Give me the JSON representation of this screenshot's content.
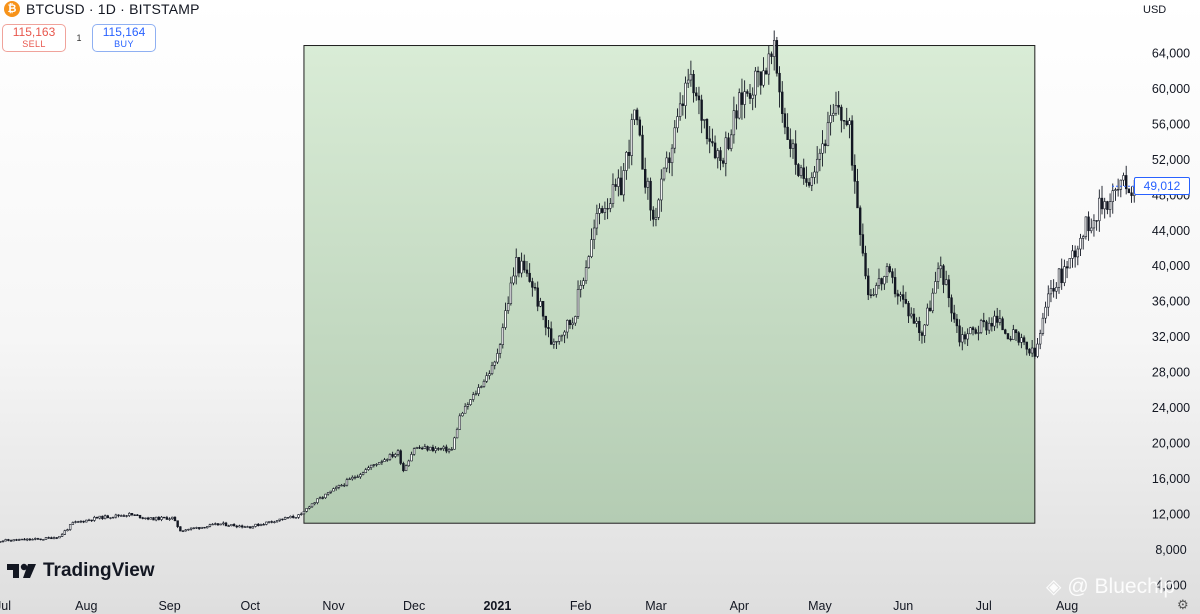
{
  "header": {
    "symbol_icon": "bitcoin-icon",
    "symbol_icon_glyph": "₿",
    "title": "BTCUSD · 1D · BITSTAMP"
  },
  "trade": {
    "sell_price": "115,163",
    "sell_label": "SELL",
    "spread": "1",
    "buy_price": "115,164",
    "buy_label": "BUY"
  },
  "currency": "USD",
  "last_price": "49,012",
  "logo": {
    "text": "TradingView",
    "icon": "tradingview-logo-icon"
  },
  "watermark": {
    "text": "@ Bluechip",
    "icon": "binance-diamond-icon",
    "icon_glyph": "◈"
  },
  "settings_icon": "⚙",
  "colors": {
    "highlight_fill": "#c4dfc2",
    "candle": "#131722",
    "accent": "#2962ff",
    "sell": "#e8574d"
  },
  "chart_data": {
    "type": "candlestick",
    "title": "",
    "xlabel": "",
    "ylabel": "",
    "ylim": [
      3000,
      68000
    ],
    "y_ticks": [
      64000,
      60000,
      56000,
      52000,
      48000,
      44000,
      40000,
      36000,
      32000,
      28000,
      24000,
      20000,
      16000,
      12000,
      8000,
      4000
    ],
    "y_tick_labels": [
      "64,000",
      "60,000",
      "56,000",
      "52,000",
      "48,000",
      "44,000",
      "40,000",
      "36,000",
      "32,000",
      "28,000",
      "24,000",
      "20,000",
      "16,000",
      "12,000",
      "8,000",
      "4,000"
    ],
    "x_tick_labels": [
      "Jul",
      "Aug",
      "Sep",
      "Oct",
      "Nov",
      "Dec",
      "2021",
      "Feb",
      "Mar",
      "Apr",
      "May",
      "Jun",
      "Jul",
      "Aug"
    ],
    "x_tick_dates": [
      "2020-07-01",
      "2020-08-01",
      "2020-09-01",
      "2020-10-01",
      "2020-11-01",
      "2020-12-01",
      "2021-01-01",
      "2021-02-01",
      "2021-03-01",
      "2021-04-01",
      "2021-05-01",
      "2021-06-01",
      "2021-07-01",
      "2021-08-01"
    ],
    "grid": false,
    "last_value": 49012,
    "highlight_range": {
      "start_date": "2020-10-21",
      "end_date": "2021-07-20",
      "low": 11000,
      "high": 64900
    },
    "series": [
      {
        "points": [
          [
            "2020-06-28",
            9000
          ],
          [
            "2020-07-15",
            9200
          ],
          [
            "2020-07-22",
            9500
          ],
          [
            "2020-07-27",
            11000
          ],
          [
            "2020-08-05",
            11600
          ],
          [
            "2020-08-17",
            12000
          ],
          [
            "2020-08-25",
            11500
          ],
          [
            "2020-09-02",
            11600
          ],
          [
            "2020-09-05",
            10200
          ],
          [
            "2020-09-20",
            10900
          ],
          [
            "2020-10-01",
            10600
          ],
          [
            "2020-10-10",
            11300
          ],
          [
            "2020-10-20",
            11900
          ],
          [
            "2020-10-23",
            13000
          ],
          [
            "2020-11-05",
            15500
          ],
          [
            "2020-11-17",
            17800
          ],
          [
            "2020-11-25",
            19000
          ],
          [
            "2020-11-27",
            17000
          ],
          [
            "2020-12-01",
            19500
          ],
          [
            "2020-12-15",
            19300
          ],
          [
            "2020-12-18",
            23000
          ],
          [
            "2020-12-31",
            29000
          ],
          [
            "2021-01-08",
            40500
          ],
          [
            "2021-01-14",
            38000
          ],
          [
            "2021-01-21",
            31500
          ],
          [
            "2021-01-29",
            34000
          ],
          [
            "2021-02-08",
            46500
          ],
          [
            "2021-02-16",
            49000
          ],
          [
            "2021-02-21",
            57000
          ],
          [
            "2021-02-28",
            45000
          ],
          [
            "2021-03-13",
            61000
          ],
          [
            "2021-03-25",
            52000
          ],
          [
            "2021-04-02",
            59000
          ],
          [
            "2021-04-14",
            63800
          ],
          [
            "2021-04-18",
            56000
          ],
          [
            "2021-04-25",
            49000
          ],
          [
            "2021-05-08",
            58000
          ],
          [
            "2021-05-12",
            55000
          ],
          [
            "2021-05-19",
            37000
          ],
          [
            "2021-05-26",
            39000
          ],
          [
            "2021-06-08",
            32500
          ],
          [
            "2021-06-15",
            40000
          ],
          [
            "2021-06-22",
            32000
          ],
          [
            "2021-07-05",
            34000
          ],
          [
            "2021-07-20",
            29800
          ],
          [
            "2021-07-26",
            37500
          ],
          [
            "2021-08-01",
            40000
          ],
          [
            "2021-08-07",
            44000
          ],
          [
            "2021-08-14",
            47000
          ],
          [
            "2021-08-23",
            49500
          ],
          [
            "2021-08-26",
            48500
          ]
        ]
      }
    ]
  }
}
